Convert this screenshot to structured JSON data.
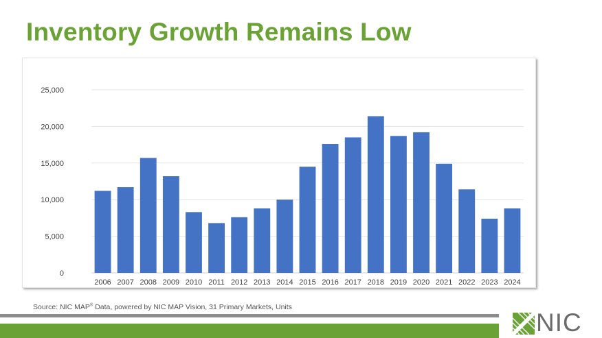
{
  "title": "Inventory Growth Remains Low",
  "source": {
    "prefix": "Source: NIC MAP",
    "registered": "®",
    "suffix": " Data, powered by NIC MAP Vision, 31 Primary Markets, Units"
  },
  "logo": {
    "text": "NIC",
    "icon": "nic-mark-icon"
  },
  "colors": {
    "title": "#6aa236",
    "bar": "#4472c4",
    "green_band": "#6aa236",
    "gray_band": "#8c8c8c",
    "logo_text": "#6b6b6b"
  },
  "chart_data": {
    "type": "bar",
    "categories": [
      "2006",
      "2007",
      "2008",
      "2009",
      "2010",
      "2011",
      "2012",
      "2013",
      "2014",
      "2015",
      "2016",
      "2017",
      "2018",
      "2019",
      "2020",
      "2021",
      "2022",
      "2023",
      "2024"
    ],
    "values": [
      11200,
      11700,
      15700,
      13200,
      8300,
      6800,
      7600,
      8800,
      10000,
      14500,
      17600,
      18500,
      21400,
      18700,
      19200,
      14900,
      11400,
      7400,
      8800
    ],
    "title": "",
    "xlabel": "",
    "ylabel": "",
    "ylim": [
      0,
      25000
    ],
    "yticks": [
      0,
      5000,
      10000,
      15000,
      20000,
      25000
    ],
    "ytick_labels": [
      "0",
      "5,000",
      "10,000",
      "15,000",
      "20,000",
      "25,000"
    ],
    "grid": true,
    "legend": "none"
  }
}
